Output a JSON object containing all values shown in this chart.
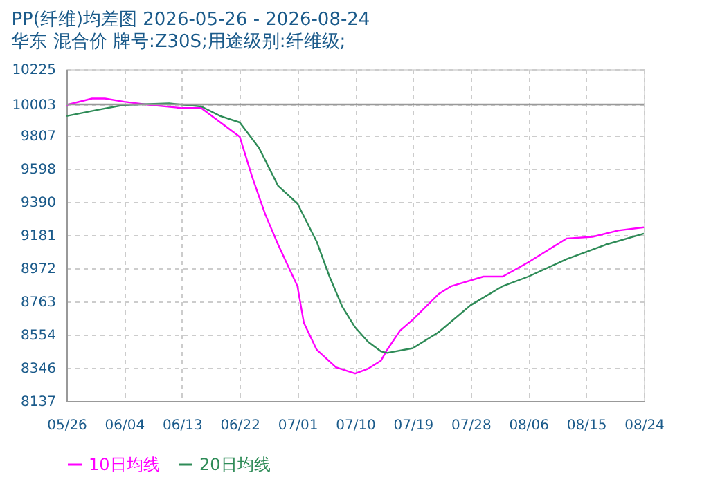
{
  "chart_data": {
    "type": "line",
    "title": "PP(纤维)均差图 2026-05-26 - 2026-08-24",
    "subtitle": "华东 混合价 牌号:Z30S;用途级别:纤维级;",
    "series": [
      {
        "name": "10日均线",
        "color": "#ff00ff",
        "x": [
          "2026-05-26",
          "2026-05-30",
          "2026-06-01",
          "2026-06-04",
          "2026-06-08",
          "2026-06-13",
          "2026-06-16",
          "2026-06-19",
          "2026-06-22",
          "2026-06-24",
          "2026-06-26",
          "2026-06-28",
          "2026-07-01",
          "2026-07-02",
          "2026-07-04",
          "2026-07-07",
          "2026-07-10",
          "2026-07-12",
          "2026-07-14",
          "2026-07-15",
          "2026-07-17",
          "2026-07-19",
          "2026-07-23",
          "2026-07-25",
          "2026-07-30",
          "2026-08-02",
          "2026-08-06",
          "2026-08-12",
          "2026-08-16",
          "2026-08-20",
          "2026-08-24"
        ],
        "values": [
          10000,
          10040,
          10040,
          10020,
          10000,
          9980,
          9980,
          9890,
          9800,
          9540,
          9310,
          9120,
          8860,
          8630,
          8460,
          8350,
          8310,
          8340,
          8390,
          8460,
          8580,
          8650,
          8810,
          8860,
          8920,
          8920,
          9010,
          9160,
          9170,
          9210,
          9230
        ]
      },
      {
        "name": "20日均线",
        "color": "#2e8b57",
        "x": [
          "2026-05-26",
          "2026-05-31",
          "2026-06-04",
          "2026-06-11",
          "2026-06-16",
          "2026-06-19",
          "2026-06-22",
          "2026-06-25",
          "2026-06-28",
          "2026-07-01",
          "2026-07-04",
          "2026-07-06",
          "2026-07-08",
          "2026-07-10",
          "2026-07-12",
          "2026-07-14",
          "2026-07-15",
          "2026-07-19",
          "2026-07-23",
          "2026-07-28",
          "2026-08-02",
          "2026-08-06",
          "2026-08-12",
          "2026-08-18",
          "2026-08-24"
        ],
        "values": [
          9930,
          9970,
          10000,
          10010,
          9990,
          9930,
          9890,
          9730,
          9490,
          9380,
          9140,
          8920,
          8730,
          8600,
          8510,
          8450,
          8440,
          8470,
          8570,
          8740,
          8860,
          8920,
          9030,
          9120,
          9190
        ]
      }
    ],
    "xlim": [
      "2026-05-26",
      "2026-08-24"
    ],
    "xticks": [
      {
        "value": "2026-05-26",
        "label": "05/26"
      },
      {
        "value": "2026-06-04",
        "label": "06/04"
      },
      {
        "value": "2026-06-13",
        "label": "06/13"
      },
      {
        "value": "2026-06-22",
        "label": "06/22"
      },
      {
        "value": "2026-07-01",
        "label": "07/01"
      },
      {
        "value": "2026-07-10",
        "label": "07/10"
      },
      {
        "value": "2026-07-19",
        "label": "07/19"
      },
      {
        "value": "2026-07-28",
        "label": "07/28"
      },
      {
        "value": "2026-08-06",
        "label": "08/06"
      },
      {
        "value": "2026-08-15",
        "label": "08/15"
      },
      {
        "value": "2026-08-24",
        "label": "08/24"
      }
    ],
    "ylim": [
      8137,
      10225
    ],
    "yticks": [
      8137,
      8346,
      8554,
      8763,
      8972,
      9181,
      9390,
      9598,
      9807,
      10003,
      10225
    ],
    "ref_lines": [
      {
        "axis": "y",
        "value": 10003,
        "color": "#999999",
        "line_style": "solid"
      }
    ],
    "grid": true,
    "legend": "bottom",
    "marker": "none",
    "line_style": "solid"
  }
}
